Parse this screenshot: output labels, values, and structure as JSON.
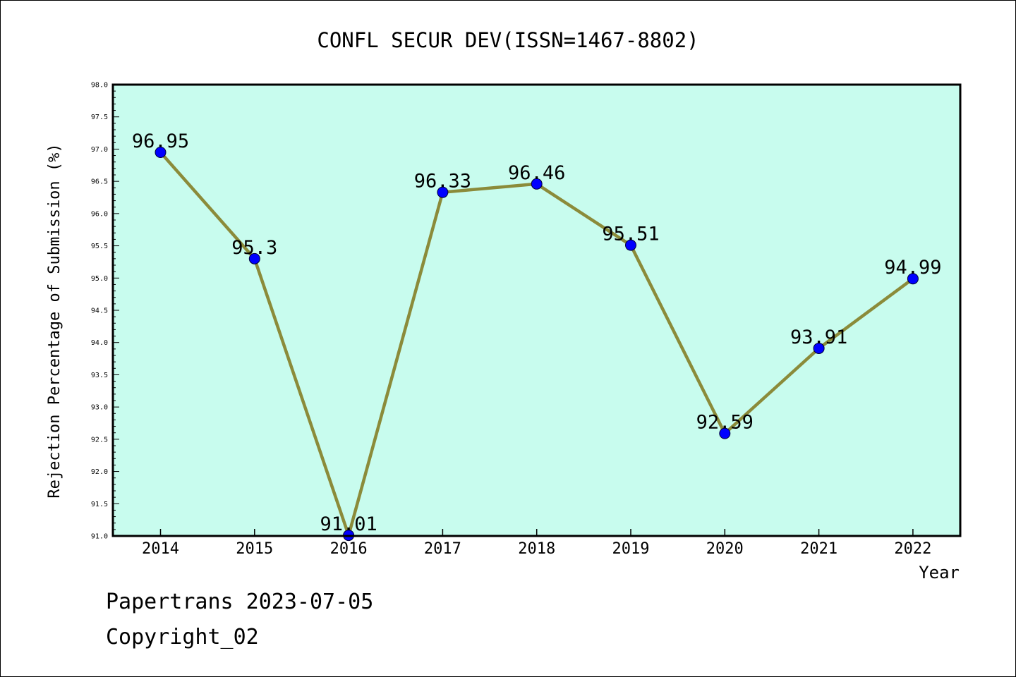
{
  "chart_data": {
    "type": "line",
    "title": "CONFL SECUR DEV(ISSN=1467-8802)",
    "xlabel": "Year",
    "ylabel": "Rejection Percentage of Submission (%)",
    "categories": [
      "2014",
      "2015",
      "2016",
      "2017",
      "2018",
      "2019",
      "2020",
      "2021",
      "2022"
    ],
    "values": [
      96.95,
      95.3,
      91.01,
      96.33,
      96.46,
      95.51,
      92.59,
      93.91,
      94.99
    ],
    "data_labels": [
      "96.95",
      "95.3",
      "91.01",
      "96.33",
      "96.46",
      "95.51",
      "92.59",
      "93.91",
      "94.99"
    ],
    "ylim": [
      91.0,
      98.0
    ],
    "yticks": [
      "91.0",
      "91.5",
      "92.0",
      "92.5",
      "93.0",
      "93.5",
      "94.0",
      "94.5",
      "95.0",
      "95.5",
      "96.0",
      "96.5",
      "97.0",
      "97.5",
      "98.0"
    ],
    "grid": false,
    "colors": {
      "plot_background": "#c8fcee",
      "line": "#8b8b3a",
      "marker": "#0000ff"
    }
  },
  "footer": {
    "line1": "Papertrans 2023-07-05",
    "line2": "Copyright_02"
  }
}
